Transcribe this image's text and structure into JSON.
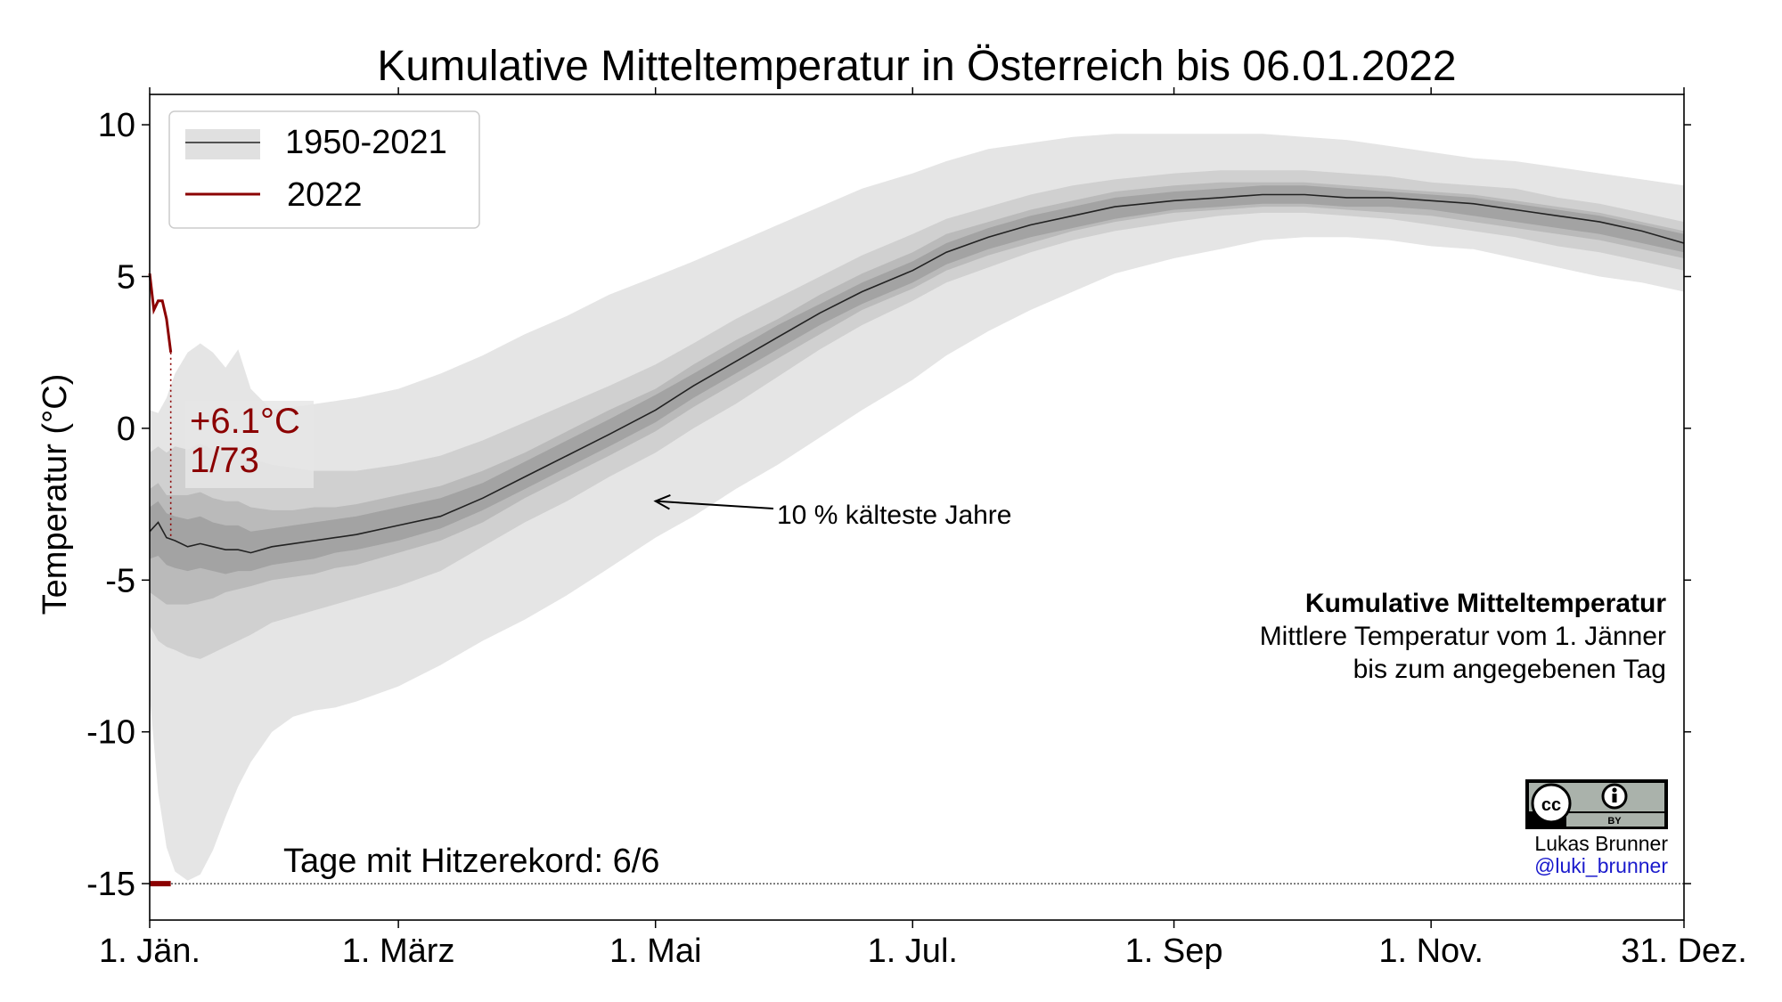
{
  "chart_data": {
    "type": "area",
    "title": "Kumulative Mitteltemperatur in Österreich bis 06.01.2022",
    "ylabel": "Temperatur (°C)",
    "xlabel": "",
    "xlim": [
      1,
      365
    ],
    "ylim": [
      -16.2,
      11
    ],
    "x_ticks": [
      {
        "day": 1,
        "label": "1. Jän."
      },
      {
        "day": 60,
        "label": "1. März"
      },
      {
        "day": 121,
        "label": "1. Mai"
      },
      {
        "day": 182,
        "label": "1. Jul."
      },
      {
        "day": 244,
        "label": "1. Sep"
      },
      {
        "day": 305,
        "label": "1. Nov."
      },
      {
        "day": 365,
        "label": "31. Dez."
      }
    ],
    "y_ticks": [
      {
        "value": 10,
        "label": "10"
      },
      {
        "value": 5,
        "label": "5"
      },
      {
        "value": 0,
        "label": "0"
      },
      {
        "value": -5,
        "label": "-5"
      },
      {
        "value": -10,
        "label": "-10"
      },
      {
        "value": -15,
        "label": "-15"
      }
    ],
    "grid": false,
    "legend": {
      "placement": "top-left",
      "entries": [
        {
          "label": "1950-2021",
          "style": "band"
        },
        {
          "label": "2022",
          "style": "line"
        }
      ]
    },
    "climatology": {
      "name": "1950-2021",
      "x": [
        1,
        3,
        5,
        7,
        10,
        13,
        16,
        19,
        22,
        25,
        30,
        35,
        40,
        45,
        50,
        60,
        70,
        80,
        90,
        100,
        110,
        121,
        130,
        140,
        150,
        160,
        170,
        182,
        190,
        200,
        210,
        220,
        230,
        244,
        255,
        265,
        275,
        285,
        295,
        305,
        315,
        325,
        335,
        345,
        355,
        365
      ],
      "median": [
        -3.4,
        -3.1,
        -3.6,
        -3.7,
        -3.9,
        -3.8,
        -3.9,
        -4.0,
        -4.0,
        -4.1,
        -3.9,
        -3.8,
        -3.7,
        -3.6,
        -3.5,
        -3.2,
        -2.9,
        -2.3,
        -1.6,
        -0.9,
        -0.2,
        0.6,
        1.4,
        2.2,
        3.0,
        3.8,
        4.5,
        5.2,
        5.8,
        6.3,
        6.7,
        7.0,
        7.3,
        7.5,
        7.6,
        7.7,
        7.7,
        7.6,
        7.6,
        7.5,
        7.4,
        7.2,
        7.0,
        6.8,
        6.5,
        6.1
      ],
      "bands": [
        {
          "level": "outer",
          "lower": [
            -8.8,
            -12.0,
            -13.8,
            -14.6,
            -14.9,
            -14.7,
            -13.9,
            -12.8,
            -11.8,
            -11.0,
            -10.0,
            -9.5,
            -9.3,
            -9.2,
            -9.0,
            -8.5,
            -7.8,
            -7.0,
            -6.3,
            -5.5,
            -4.6,
            -3.6,
            -2.9,
            -2.0,
            -1.2,
            -0.3,
            0.6,
            1.6,
            2.4,
            3.2,
            3.9,
            4.5,
            5.1,
            5.6,
            5.9,
            6.2,
            6.3,
            6.3,
            6.2,
            6.0,
            5.9,
            5.6,
            5.3,
            5.0,
            4.8,
            4.5
          ],
          "upper": [
            0.6,
            0.5,
            1.0,
            1.8,
            2.5,
            2.8,
            2.5,
            2.0,
            2.6,
            1.3,
            0.6,
            0.7,
            0.8,
            0.9,
            1.0,
            1.3,
            1.8,
            2.4,
            3.1,
            3.7,
            4.4,
            5.0,
            5.5,
            6.1,
            6.7,
            7.3,
            7.9,
            8.4,
            8.8,
            9.2,
            9.4,
            9.6,
            9.7,
            9.7,
            9.7,
            9.7,
            9.6,
            9.5,
            9.3,
            9.1,
            8.9,
            8.8,
            8.6,
            8.4,
            8.2,
            8.0
          ]
        },
        {
          "level": "90",
          "lower": [
            -6.5,
            -7.0,
            -7.2,
            -7.3,
            -7.5,
            -7.6,
            -7.4,
            -7.2,
            -7.0,
            -6.8,
            -6.4,
            -6.2,
            -6.0,
            -5.8,
            -5.6,
            -5.2,
            -4.7,
            -3.9,
            -3.1,
            -2.4,
            -1.6,
            -0.8,
            0.0,
            0.8,
            1.7,
            2.6,
            3.4,
            4.2,
            4.8,
            5.3,
            5.8,
            6.2,
            6.5,
            6.8,
            7.0,
            7.1,
            7.1,
            7.0,
            6.9,
            6.7,
            6.5,
            6.3,
            6.0,
            5.8,
            5.5,
            5.2
          ],
          "upper": [
            -0.8,
            -0.6,
            -0.8,
            -0.6,
            -0.7,
            -0.5,
            -0.7,
            -0.8,
            -0.8,
            -1.0,
            -1.2,
            -1.3,
            -1.4,
            -1.4,
            -1.4,
            -1.2,
            -0.9,
            -0.4,
            0.2,
            0.8,
            1.4,
            2.1,
            2.8,
            3.6,
            4.3,
            5.0,
            5.7,
            6.4,
            6.9,
            7.3,
            7.7,
            8.0,
            8.2,
            8.4,
            8.5,
            8.5,
            8.5,
            8.4,
            8.3,
            8.1,
            8.0,
            7.9,
            7.6,
            7.4,
            7.1,
            6.8
          ]
        },
        {
          "level": "75",
          "lower": [
            -5.4,
            -5.6,
            -5.8,
            -5.8,
            -5.8,
            -5.7,
            -5.6,
            -5.4,
            -5.3,
            -5.2,
            -5.0,
            -4.9,
            -4.8,
            -4.6,
            -4.5,
            -4.1,
            -3.7,
            -3.1,
            -2.3,
            -1.6,
            -0.9,
            -0.1,
            0.7,
            1.5,
            2.3,
            3.1,
            3.9,
            4.6,
            5.2,
            5.7,
            6.1,
            6.5,
            6.8,
            7.1,
            7.2,
            7.3,
            7.3,
            7.2,
            7.1,
            7.0,
            6.8,
            6.6,
            6.4,
            6.2,
            5.9,
            5.6
          ],
          "upper": [
            -2.0,
            -1.8,
            -2.2,
            -2.2,
            -2.2,
            -2.1,
            -2.3,
            -2.4,
            -2.4,
            -2.6,
            -2.7,
            -2.7,
            -2.6,
            -2.6,
            -2.5,
            -2.2,
            -1.9,
            -1.4,
            -0.8,
            -0.1,
            0.6,
            1.3,
            2.1,
            2.9,
            3.6,
            4.4,
            5.1,
            5.8,
            6.4,
            6.8,
            7.2,
            7.5,
            7.8,
            8.0,
            8.1,
            8.1,
            8.1,
            8.0,
            7.9,
            7.8,
            7.7,
            7.5,
            7.3,
            7.1,
            6.8,
            6.5
          ]
        },
        {
          "level": "50",
          "lower": [
            -4.3,
            -4.2,
            -4.5,
            -4.6,
            -4.7,
            -4.6,
            -4.7,
            -4.8,
            -4.7,
            -4.7,
            -4.5,
            -4.4,
            -4.3,
            -4.1,
            -4.0,
            -3.7,
            -3.3,
            -2.7,
            -2.0,
            -1.3,
            -0.6,
            0.2,
            1.0,
            1.8,
            2.6,
            3.4,
            4.1,
            4.8,
            5.4,
            5.9,
            6.3,
            6.6,
            6.9,
            7.2,
            7.3,
            7.4,
            7.4,
            7.3,
            7.3,
            7.2,
            7.0,
            6.8,
            6.6,
            6.4,
            6.1,
            5.8
          ],
          "upper": [
            -2.6,
            -2.4,
            -2.8,
            -2.9,
            -3.0,
            -2.9,
            -3.1,
            -3.2,
            -3.2,
            -3.4,
            -3.3,
            -3.2,
            -3.1,
            -3.0,
            -2.9,
            -2.6,
            -2.3,
            -1.8,
            -1.1,
            -0.4,
            0.3,
            1.1,
            1.8,
            2.6,
            3.4,
            4.1,
            4.8,
            5.5,
            6.1,
            6.6,
            7.0,
            7.3,
            7.6,
            7.8,
            7.9,
            8.0,
            8.0,
            7.9,
            7.8,
            7.7,
            7.6,
            7.4,
            7.2,
            7.0,
            6.7,
            6.4
          ]
        }
      ]
    },
    "series": [
      {
        "name": "2022",
        "x": [
          1,
          2,
          3,
          4,
          5,
          6
        ],
        "values": [
          5.1,
          3.9,
          4.2,
          4.2,
          3.6,
          2.5
        ]
      }
    ],
    "annotations": {
      "current_value": "+6.1°C",
      "rank": "1/73",
      "coldest_label": "10 % kälteste Jahre",
      "coldest_arrow_target": {
        "day": 121,
        "value": -2.4
      },
      "record_days": "Tage mit Hitzerekord: 6/6",
      "record_line_value": -15,
      "note_title": "Kumulative Mitteltemperatur",
      "note_lines": [
        "Mittlere Temperatur vom 1. Jänner",
        "bis zum angegebenen Tag"
      ]
    },
    "colors": {
      "band_outer": "#e5e5e5",
      "band_90": "#d0d0d0",
      "band_75": "#bababa",
      "band_50": "#a3a3a3",
      "median": "#222222",
      "current_year": "#8b0000",
      "credit_handle": "#1a1acc"
    }
  },
  "credit": {
    "license_icon": "cc-by-icon",
    "author": "Lukas Brunner",
    "handle": "@luki_brunner"
  }
}
